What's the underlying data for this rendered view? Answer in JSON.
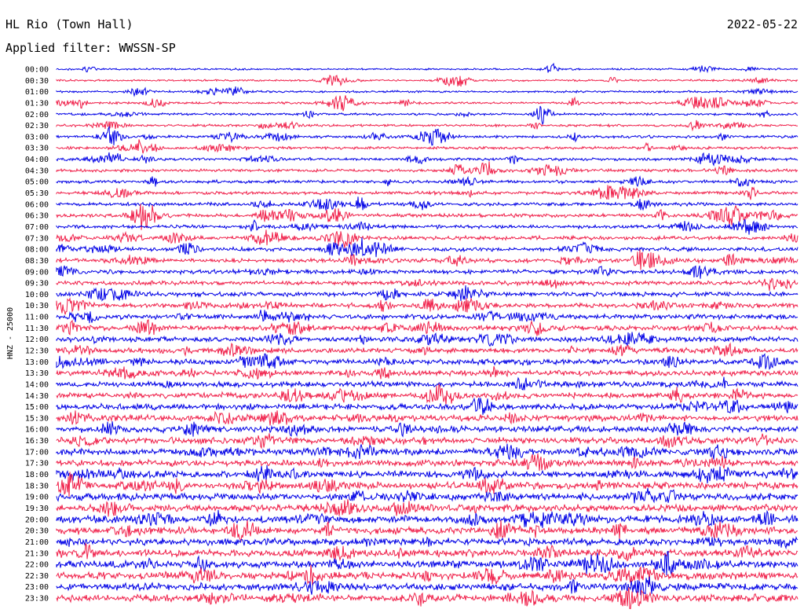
{
  "chart_data": {
    "type": "line",
    "title_left": "HL Rio (Town Hall)",
    "title_right": "2022-05-22",
    "subtitle": "Applied filter: WWSSN-SP",
    "ylabel": "HNZ - 25000",
    "xlabel": "",
    "time_ticks": [
      "00:00",
      "00:30",
      "01:00",
      "01:30",
      "02:00",
      "02:30",
      "03:00",
      "03:30",
      "04:00",
      "04:30",
      "05:00",
      "05:30",
      "06:00",
      "06:30",
      "07:00",
      "07:30",
      "08:00",
      "08:30",
      "09:00",
      "09:30",
      "10:00",
      "10:30",
      "11:00",
      "11:30",
      "12:00",
      "12:30",
      "13:00",
      "13:30",
      "14:00",
      "14:30",
      "15:00",
      "15:30",
      "16:00",
      "16:30",
      "17:00",
      "17:30",
      "18:00",
      "18:30",
      "19:00",
      "19:30",
      "20:00",
      "20:30",
      "21:00",
      "21:30",
      "22:00",
      "22:30",
      "23:00",
      "23:30"
    ],
    "trace_colors": [
      "#0000e6",
      "#f0204a"
    ],
    "grid": false
  }
}
